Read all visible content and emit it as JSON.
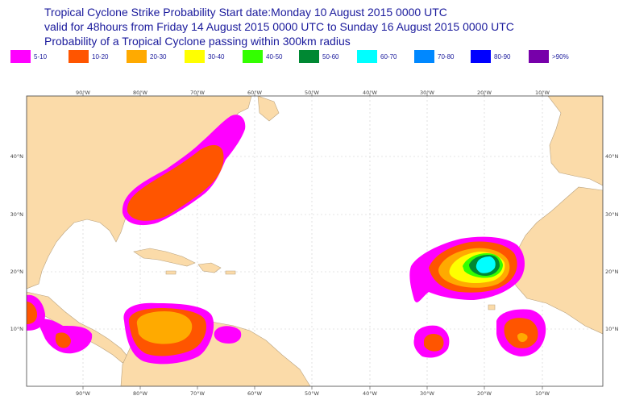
{
  "title": {
    "line1": "Tropical Cyclone Strike Probability Start date:Monday 10 August 2015 0000 UTC",
    "line2": "valid for 48hours from Friday 14 August 2015 0000 UTC to  Sunday 16 August 2015 0000 UTC",
    "line3": "Probability of a Tropical Cyclone passing within 300km radius"
  },
  "legend": [
    {
      "label": "5-10",
      "color": "#ff00ff"
    },
    {
      "label": "10-20",
      "color": "#ff5500"
    },
    {
      "label": "20-30",
      "color": "#ffaa00"
    },
    {
      "label": "30-40",
      "color": "#ffff00"
    },
    {
      "label": "40-50",
      "color": "#33ff00"
    },
    {
      "label": "50-60",
      "color": "#008833"
    },
    {
      "label": "60-70",
      "color": "#00ffff"
    },
    {
      "label": "70-80",
      "color": "#0088ff"
    },
    {
      "label": "80-90",
      "color": "#0000ff"
    },
    {
      "label": ">90%",
      "color": "#7700aa"
    }
  ],
  "map": {
    "land_color": "#fbdba9",
    "ocean_color": "#ffffff",
    "lon_labels": [
      "90°W",
      "80°W",
      "70°W",
      "60°W",
      "50°W",
      "40°W",
      "30°W",
      "20°W",
      "10°W"
    ],
    "lat_labels": [
      "40°N",
      "30°N",
      "20°N",
      "10°N"
    ]
  }
}
